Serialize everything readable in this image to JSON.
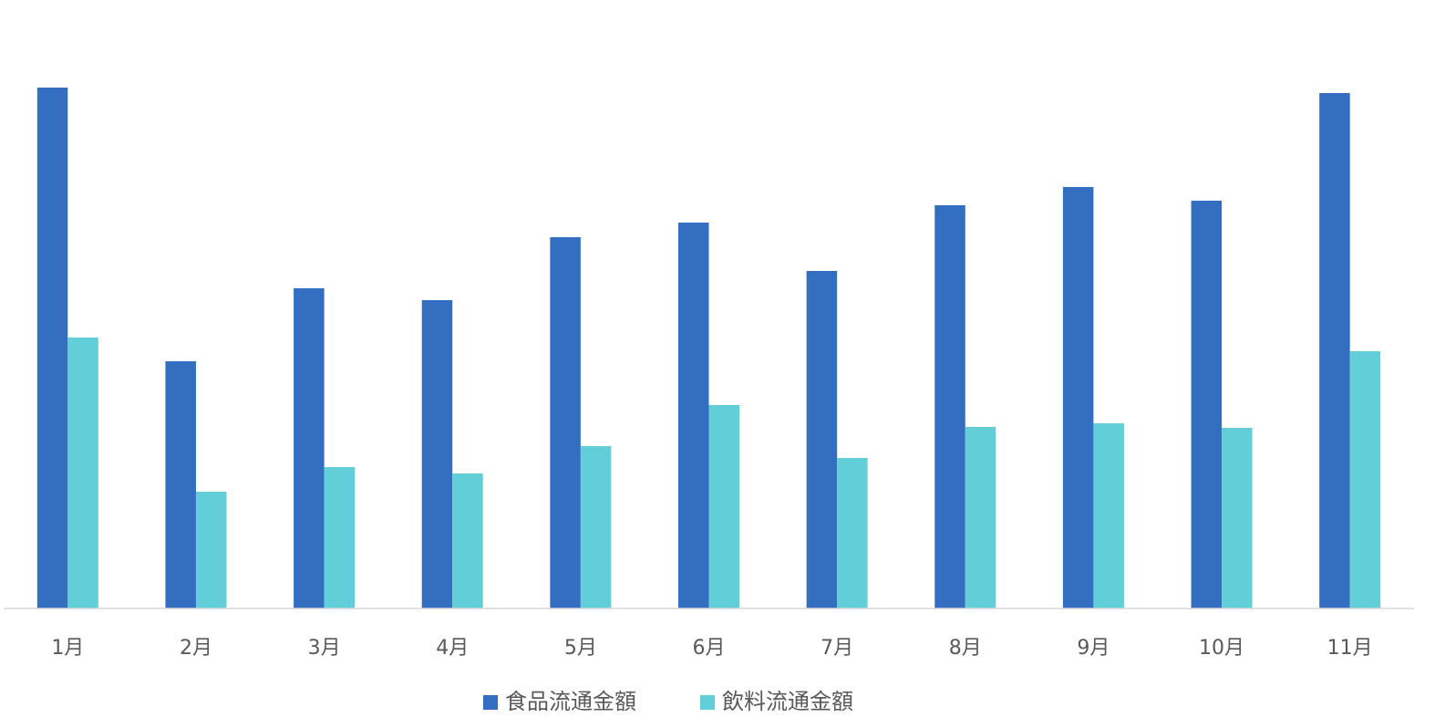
{
  "chart_data": {
    "type": "bar",
    "categories": [
      "1月",
      "2月",
      "3月",
      "4月",
      "5月",
      "6月",
      "7月",
      "8月",
      "9月",
      "10月",
      "11月"
    ],
    "series": [
      {
        "name": "食品流通金額",
        "color": "#336ec0",
        "values": [
          571,
          271,
          351,
          338,
          407,
          423,
          370,
          442,
          462,
          447,
          565
        ]
      },
      {
        "name": "飲料流通金額",
        "color": "#62ced8",
        "values": [
          297,
          128,
          155,
          148,
          178,
          223,
          165,
          199,
          203,
          198,
          282
        ]
      }
    ],
    "ylim": [
      0,
      600
    ],
    "legend": "bottom"
  }
}
